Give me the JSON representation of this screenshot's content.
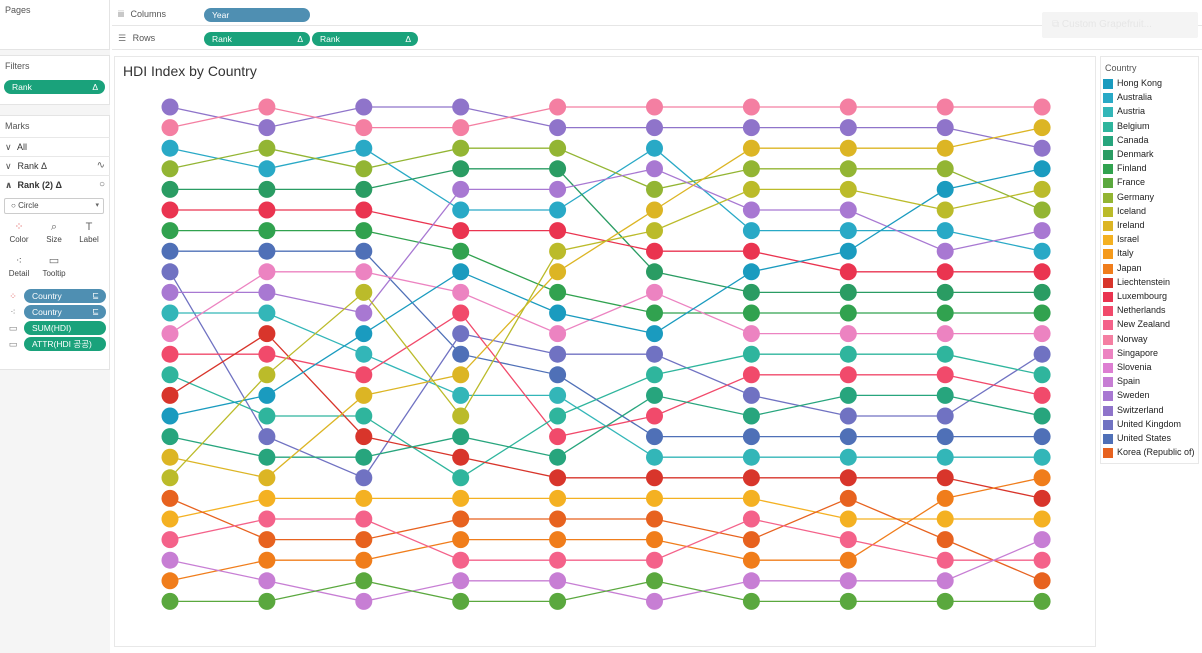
{
  "left_panel": {
    "pages": {
      "title": "Pages"
    },
    "filters": {
      "title": "Filters",
      "pills": [
        {
          "label": "Rank",
          "delta": "Δ"
        }
      ]
    },
    "marks": {
      "title": "Marks",
      "layers": [
        {
          "label": "All",
          "chevron": "∨",
          "icon": ""
        },
        {
          "label": "Rank  Δ",
          "chevron": "∨",
          "icon": "∿"
        },
        {
          "label": "Rank (2)  Δ",
          "chevron": "∧",
          "icon": "○"
        }
      ],
      "mark_type": {
        "icon": "○",
        "label": "Circle",
        "dropdown": "▾"
      },
      "properties": [
        {
          "label": "Color",
          "icon": "⁘"
        },
        {
          "label": "Size",
          "icon": "⌕"
        },
        {
          "label": "Label",
          "icon": "T"
        },
        {
          "label": "Detail",
          "icon": "⁖"
        },
        {
          "label": "Tooltip",
          "icon": "▭"
        }
      ],
      "encodings": [
        {
          "tag": "⁘",
          "label": "Country",
          "pill_color": "blue",
          "sort": "⊑"
        },
        {
          "tag": "⁖",
          "label": "Country",
          "pill_color": "blue",
          "sort": "⊑"
        },
        {
          "tag": "▭",
          "label": "SUM(HDI)",
          "pill_color": "green",
          "sort": ""
        },
        {
          "tag": "▭",
          "label": "ATTR(HDI 공공)",
          "pill_color": "green",
          "sort": ""
        }
      ]
    }
  },
  "shelves": {
    "columns": {
      "icon": "iii",
      "label": "Columns",
      "pills": [
        {
          "label": "Year",
          "color": "blue",
          "delta": ""
        }
      ]
    },
    "rows": {
      "icon": "☰",
      "label": "Rows",
      "pills": [
        {
          "label": "Rank",
          "color": "green",
          "delta": "Δ"
        },
        {
          "label": "Rank",
          "color": "green",
          "delta": "Δ"
        }
      ]
    },
    "ghost_button": "⧉  Custom   Grapefruit..."
  },
  "sheet": {
    "title": "HDI Index by Country"
  },
  "legend": {
    "title": "Country",
    "items": [
      {
        "label": "Hong Kong",
        "color": "#1a9bbf"
      },
      {
        "label": "Australia",
        "color": "#29a9c6"
      },
      {
        "label": "Austria",
        "color": "#33b6b8"
      },
      {
        "label": "Belgium",
        "color": "#2fb59d"
      },
      {
        "label": "Canada",
        "color": "#27a57d"
      },
      {
        "label": "Denmark",
        "color": "#2a9c63"
      },
      {
        "label": "Finland",
        "color": "#31a24f"
      },
      {
        "label": "France",
        "color": "#5aa83e"
      },
      {
        "label": "Germany",
        "color": "#93b533"
      },
      {
        "label": "Iceland",
        "color": "#bbbb2a"
      },
      {
        "label": "Ireland",
        "color": "#dcb524"
      },
      {
        "label": "Israel",
        "color": "#f4b122"
      },
      {
        "label": "Italy",
        "color": "#f59a1c"
      },
      {
        "label": "Japan",
        "color": "#f07d1b"
      },
      {
        "label": "Liechtenstein",
        "color": "#d8352b"
      },
      {
        "label": "Luxembourg",
        "color": "#ea3450"
      },
      {
        "label": "Netherlands",
        "color": "#f14a6b"
      },
      {
        "label": "New Zealand",
        "color": "#f4628a"
      },
      {
        "label": "Norway",
        "color": "#f47fa2"
      },
      {
        "label": "Singapore",
        "color": "#ec83c1"
      },
      {
        "label": "Slovenia",
        "color": "#dd7fd2"
      },
      {
        "label": "Spain",
        "color": "#c77ed4"
      },
      {
        "label": "Sweden",
        "color": "#a878d2"
      },
      {
        "label": "Switzerland",
        "color": "#8f74ca"
      },
      {
        "label": "United Kingdom",
        "color": "#7072c2"
      },
      {
        "label": "United States",
        "color": "#4f70b7"
      },
      {
        "label": "Korea (Republic of)",
        "color": "#e7621f"
      }
    ]
  },
  "chart_data": {
    "type": "line",
    "title": "HDI Index by Country",
    "xlabel": "",
    "ylabel": "",
    "y_reversed": true,
    "ylim": [
      1,
      25
    ],
    "x_count": 10,
    "series": [
      {
        "name": "Switzerland",
        "color": "#8f74ca",
        "values": [
          1,
          2,
          1,
          1,
          2,
          2,
          2,
          2,
          2,
          3
        ]
      },
      {
        "name": "Norway",
        "color": "#f47fa2",
        "values": [
          2,
          1,
          2,
          2,
          1,
          1,
          1,
          1,
          1,
          1
        ]
      },
      {
        "name": "Australia",
        "color": "#29a9c6",
        "values": [
          3,
          4,
          3,
          6,
          6,
          3,
          7,
          7,
          7,
          8
        ]
      },
      {
        "name": "Germany",
        "color": "#93b533",
        "values": [
          4,
          3,
          4,
          3,
          3,
          5,
          4,
          4,
          4,
          6
        ]
      },
      {
        "name": "Denmark",
        "color": "#2a9c63",
        "values": [
          5,
          5,
          5,
          4,
          4,
          9,
          10,
          10,
          10,
          10
        ]
      },
      {
        "name": "Luxembourg",
        "color": "#ea3450",
        "values": [
          6,
          6,
          6,
          7,
          7,
          8,
          8,
          9,
          9,
          9
        ]
      },
      {
        "name": "Finland",
        "color": "#31a24f",
        "values": [
          7,
          7,
          7,
          8,
          10,
          11,
          11,
          11,
          11,
          11
        ]
      },
      {
        "name": "United States",
        "color": "#4f70b7",
        "values": [
          8,
          8,
          8,
          13,
          14,
          17,
          17,
          17,
          17,
          17
        ]
      },
      {
        "name": "United Kingdom",
        "color": "#7072c2",
        "values": [
          9,
          17,
          19,
          12,
          13,
          13,
          15,
          16,
          16,
          13
        ]
      },
      {
        "name": "Sweden",
        "color": "#a878d2",
        "values": [
          10,
          10,
          11,
          5,
          5,
          4,
          6,
          6,
          8,
          7
        ]
      },
      {
        "name": "Austria",
        "color": "#33b6b8",
        "values": [
          11,
          11,
          13,
          15,
          15,
          18,
          18,
          18,
          18,
          18
        ]
      },
      {
        "name": "Singapore",
        "color": "#ec83c1",
        "values": [
          12,
          9,
          9,
          10,
          12,
          10,
          12,
          12,
          12,
          12
        ]
      },
      {
        "name": "Netherlands",
        "color": "#f14a6b",
        "values": [
          13,
          13,
          14,
          11,
          17,
          16,
          14,
          14,
          14,
          15
        ]
      },
      {
        "name": "Belgium",
        "color": "#2fb59d",
        "values": [
          14,
          16,
          16,
          19,
          16,
          14,
          13,
          13,
          13,
          14
        ]
      },
      {
        "name": "Liechtenstein",
        "color": "#d8352b",
        "values": [
          15,
          12,
          17,
          18,
          19,
          19,
          19,
          19,
          19,
          20
        ]
      },
      {
        "name": "Hong Kong",
        "color": "#1a9bbf",
        "values": [
          16,
          15,
          12,
          9,
          11,
          12,
          9,
          8,
          5,
          4
        ]
      },
      {
        "name": "Canada",
        "color": "#27a57d",
        "values": [
          17,
          18,
          18,
          17,
          18,
          15,
          16,
          15,
          15,
          16
        ]
      },
      {
        "name": "Ireland",
        "color": "#dcb524",
        "values": [
          18,
          19,
          15,
          14,
          9,
          6,
          3,
          3,
          3,
          2
        ]
      },
      {
        "name": "Iceland",
        "color": "#bbbb2a",
        "values": [
          19,
          14,
          10,
          16,
          8,
          7,
          5,
          5,
          6,
          5
        ]
      },
      {
        "name": "Israel",
        "color": "#f4b122",
        "values": [
          21,
          20,
          20,
          20,
          20,
          20,
          20,
          21,
          21,
          21
        ]
      },
      {
        "name": "Korea (Republic of)",
        "color": "#e7621f",
        "values": [
          20,
          22,
          22,
          21,
          21,
          21,
          22,
          20,
          22,
          24
        ]
      },
      {
        "name": "Japan",
        "color": "#f07d1b",
        "values": [
          24,
          23,
          23,
          22,
          22,
          22,
          23,
          23,
          20,
          19
        ]
      },
      {
        "name": "New Zealand",
        "color": "#f4628a",
        "values": [
          22,
          21,
          21,
          23,
          23,
          23,
          21,
          22,
          23,
          23
        ]
      },
      {
        "name": "Spain",
        "color": "#c77ed4",
        "values": [
          23,
          24,
          25,
          24,
          24,
          25,
          24,
          24,
          24,
          22
        ]
      },
      {
        "name": "France",
        "color": "#5aa83e",
        "values": [
          25,
          25,
          24,
          25,
          25,
          24,
          25,
          25,
          25,
          25
        ]
      }
    ]
  }
}
